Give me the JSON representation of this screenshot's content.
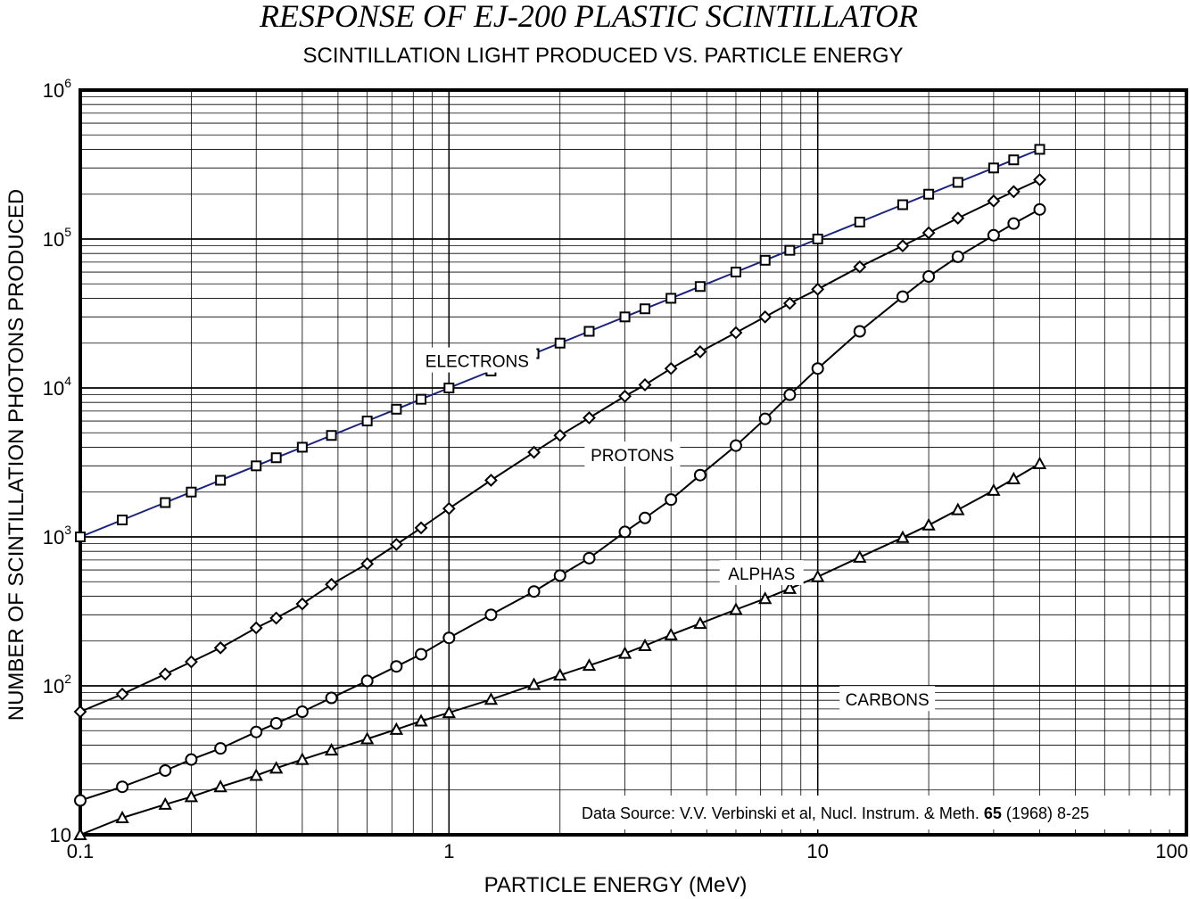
{
  "chart_data": {
    "type": "line",
    "title": "RESPONSE OF EJ-200 PLASTIC SCINTILLATOR",
    "subtitle": "SCINTILLATION LIGHT PRODUCED VS. PARTICLE ENERGY",
    "xlabel": "PARTICLE ENERGY  (MeV)",
    "ylabel": "NUMBER OF SCINTILLATION PHOTONS PRODUCED",
    "xscale": "log",
    "yscale": "log",
    "xlim": [
      0.1,
      100
    ],
    "ylim": [
      10,
      1000000
    ],
    "grid": true,
    "x_tick_labels": [
      "0.1",
      "1",
      "10",
      "100"
    ],
    "y_tick_labels": [
      {
        "base": "10",
        "exp": ""
      },
      {
        "base": "10",
        "exp": "2"
      },
      {
        "base": "10",
        "exp": "3"
      },
      {
        "base": "10",
        "exp": "4"
      },
      {
        "base": "10",
        "exp": "5"
      },
      {
        "base": "10",
        "exp": "6"
      }
    ],
    "source": {
      "prefix": "Data Source:  V.V. Verbinski et al, Nucl. Instrum. & Meth. ",
      "volume": "65",
      "suffix": "  (1968) 8-25"
    },
    "series": [
      {
        "name": "ELECTRONS",
        "marker": "square",
        "color": "#1a237e",
        "x": [
          0.1,
          0.13,
          0.17,
          0.2,
          0.24,
          0.3,
          0.34,
          0.4,
          0.48,
          0.6,
          0.72,
          0.84,
          1.0,
          1.3,
          1.7,
          2.0,
          2.4,
          3.0,
          3.4,
          4.0,
          4.8,
          6.0,
          7.2,
          8.4,
          10.0,
          13.0,
          17.0,
          20.0,
          24.0,
          30.0,
          34.0,
          40.0
        ],
        "y": [
          1000,
          1300,
          1700,
          2000,
          2400,
          3000,
          3400,
          4000,
          4800,
          6000,
          7200,
          8400,
          10000,
          13000,
          17000,
          20000,
          24000,
          30000,
          34000,
          40000,
          48000,
          60000,
          72000,
          84000,
          100000,
          130000,
          170000,
          200000,
          240000,
          300000,
          340000,
          400000
        ]
      },
      {
        "name": "PROTONS",
        "marker": "diamond",
        "color": "#000000",
        "x": [
          0.1,
          0.13,
          0.17,
          0.2,
          0.24,
          0.3,
          0.34,
          0.4,
          0.48,
          0.6,
          0.72,
          0.84,
          1.0,
          1.3,
          1.7,
          2.0,
          2.4,
          3.0,
          3.4,
          4.0,
          4.8,
          6.0,
          7.2,
          8.4,
          10.0,
          13.0,
          17.0,
          20.0,
          24.0,
          30.0,
          34.0,
          40.0
        ],
        "y": [
          67,
          88,
          120,
          145,
          180,
          245,
          285,
          355,
          480,
          660,
          890,
          1150,
          1550,
          2400,
          3700,
          4800,
          6300,
          8800,
          10500,
          13500,
          17500,
          23500,
          30000,
          37000,
          46000,
          65000,
          90000,
          110000,
          138000,
          180000,
          208000,
          250000
        ]
      },
      {
        "name": "ALPHAS",
        "marker": "circle",
        "color": "#000000",
        "x": [
          0.1,
          0.13,
          0.17,
          0.2,
          0.24,
          0.3,
          0.34,
          0.4,
          0.48,
          0.6,
          0.72,
          0.84,
          1.0,
          1.3,
          1.7,
          2.0,
          2.4,
          3.0,
          3.4,
          4.0,
          4.8,
          6.0,
          7.2,
          8.4,
          10.0,
          13.0,
          17.0,
          20.0,
          24.0,
          30.0,
          34.0,
          40.0
        ],
        "y": [
          17,
          21,
          27,
          32,
          38,
          49,
          56,
          67,
          83,
          108,
          135,
          163,
          210,
          300,
          430,
          550,
          720,
          1080,
          1340,
          1780,
          2600,
          4100,
          6200,
          9000,
          13500,
          24000,
          41000,
          56000,
          76000,
          106000,
          127000,
          158000
        ]
      },
      {
        "name": "CARBONS",
        "marker": "triangle",
        "color": "#000000",
        "x": [
          0.1,
          0.13,
          0.17,
          0.2,
          0.24,
          0.3,
          0.34,
          0.4,
          0.48,
          0.6,
          0.72,
          0.84,
          1.0,
          1.3,
          1.7,
          2.0,
          2.4,
          3.0,
          3.4,
          4.0,
          4.8,
          6.0,
          7.2,
          8.4,
          10.0,
          13.0,
          17.0,
          20.0,
          24.0,
          30.0,
          34.0,
          40.0
        ],
        "y": [
          10,
          13,
          16,
          18,
          21,
          25,
          28,
          32,
          37,
          44,
          51,
          58,
          66,
          81,
          102,
          118,
          137,
          165,
          186,
          220,
          262,
          325,
          385,
          450,
          540,
          730,
          990,
          1200,
          1520,
          2050,
          2450,
          3100
        ]
      }
    ]
  }
}
